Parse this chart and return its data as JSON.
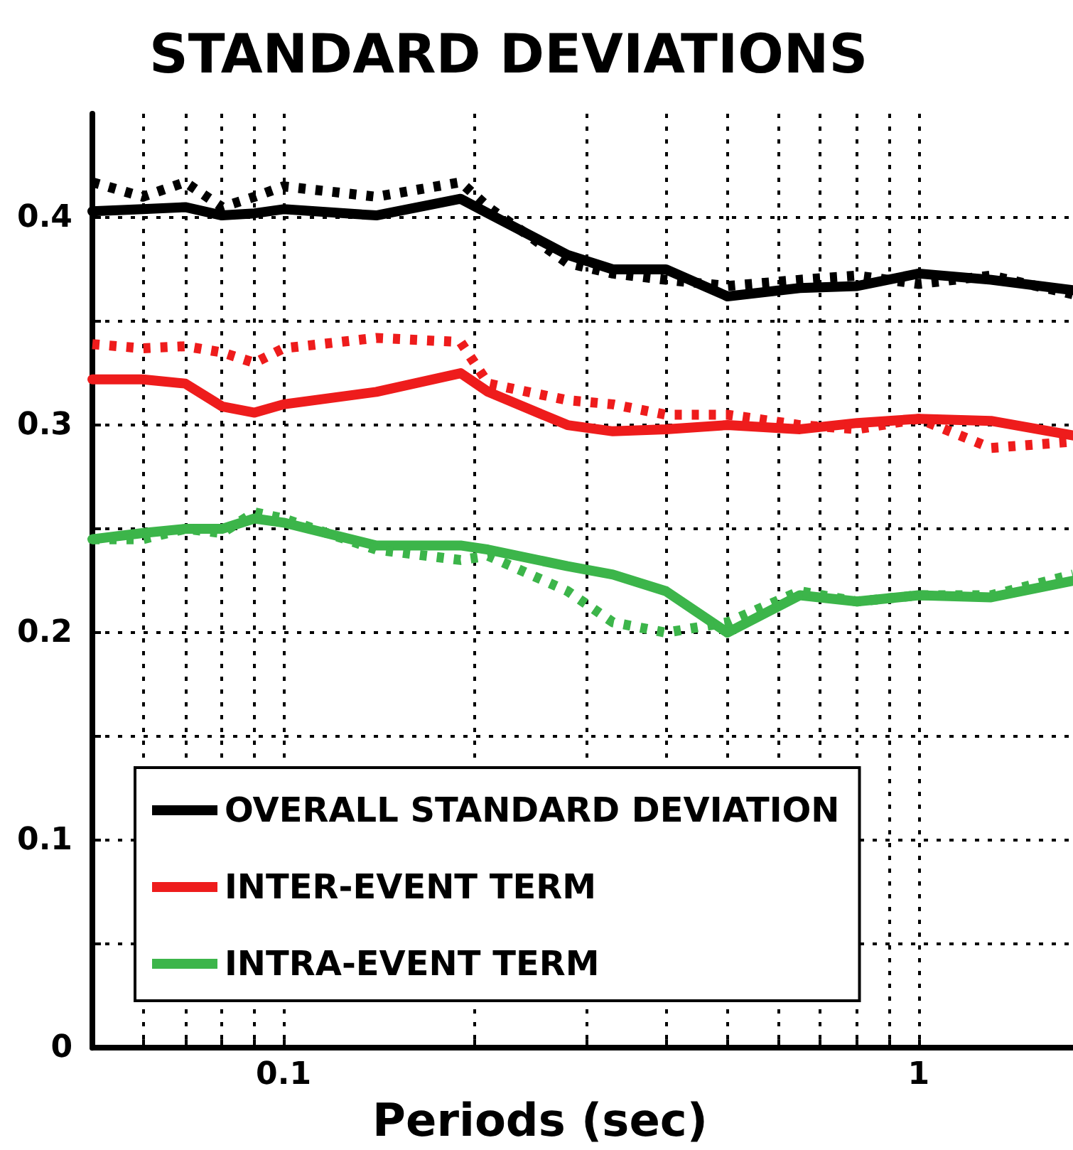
{
  "chart_data": {
    "type": "line",
    "title": "STANDARD DEVIATIONS",
    "xlabel": "Periods (sec)",
    "log": "x",
    "grid": true,
    "legend": "bottom left",
    "marker": "none",
    "x": [
      0.05,
      0.06,
      0.07,
      0.08,
      0.09,
      0.1,
      0.14,
      0.19,
      0.21,
      0.28,
      0.33,
      0.4,
      0.5,
      0.65,
      0.8,
      1,
      1.3,
      1.75
    ],
    "xlim": [
      0.05,
      1.75
    ],
    "xticks": [
      {
        "value": 0.06,
        "label": null
      },
      {
        "value": 0.07,
        "label": null
      },
      {
        "value": 0.08,
        "label": null
      },
      {
        "value": 0.09,
        "label": null
      },
      0.1,
      {
        "value": 0.2,
        "label": null
      },
      {
        "value": 0.3,
        "label": null
      },
      {
        "value": 0.4,
        "label": null
      },
      {
        "value": 0.5,
        "label": null
      },
      {
        "value": 0.6,
        "label": null
      },
      {
        "value": 0.7,
        "label": null
      },
      {
        "value": 0.8,
        "label": null
      },
      {
        "value": 0.9,
        "label": null
      },
      1
    ],
    "ylim": [
      0,
      0.45
    ],
    "yticks": [
      0,
      {
        "value": 0.05,
        "label": null
      },
      0.1,
      {
        "value": 0.15,
        "label": null
      },
      0.2,
      {
        "value": 0.25,
        "label": null
      },
      0.3,
      {
        "value": 0.35,
        "label": null
      },
      0.4
    ],
    "series": [
      {
        "name": "OVERALL STANDARD DEVIATION",
        "color": "#000000",
        "line_style": "solid",
        "values": [
          0.403,
          0.404,
          0.405,
          0.401,
          0.402,
          0.404,
          0.401,
          0.409,
          0.402,
          0.382,
          0.375,
          0.375,
          0.362,
          0.366,
          0.367,
          0.373,
          0.37,
          0.365
        ]
      },
      {
        "color": "#000000",
        "line_style": "dotted",
        "values": [
          0.417,
          0.41,
          0.417,
          0.405,
          0.41,
          0.415,
          0.41,
          0.417,
          0.405,
          0.378,
          0.373,
          0.37,
          0.367,
          0.37,
          0.372,
          0.368,
          0.372,
          0.363
        ]
      },
      {
        "name": "INTER-EVENT TERM",
        "color": "#ee1c1c",
        "line_style": "solid",
        "values": [
          0.322,
          0.322,
          0.32,
          0.309,
          0.306,
          0.31,
          0.316,
          0.325,
          0.316,
          0.3,
          0.297,
          0.298,
          0.3,
          0.298,
          0.301,
          0.303,
          0.302,
          0.295
        ]
      },
      {
        "color": "#ee1c1c",
        "line_style": "dotted",
        "values": [
          0.339,
          0.337,
          0.338,
          0.335,
          0.33,
          0.337,
          0.342,
          0.34,
          0.32,
          0.312,
          0.31,
          0.305,
          0.305,
          0.3,
          0.298,
          0.303,
          0.289,
          0.292
        ]
      },
      {
        "name": "INTRA-EVENT TERM",
        "color": "#3cb54a",
        "line_style": "solid",
        "values": [
          0.245,
          0.248,
          0.25,
          0.25,
          0.255,
          0.253,
          0.242,
          0.242,
          0.24,
          0.232,
          0.228,
          0.22,
          0.2,
          0.218,
          0.215,
          0.218,
          0.217,
          0.225
        ]
      },
      {
        "color": "#3cb54a",
        "line_style": "dotted",
        "values": [
          0.245,
          0.245,
          0.25,
          0.248,
          0.258,
          0.255,
          0.24,
          0.235,
          0.237,
          0.22,
          0.205,
          0.2,
          0.205,
          0.22,
          0.215,
          0.218,
          0.218,
          0.228
        ]
      }
    ]
  }
}
